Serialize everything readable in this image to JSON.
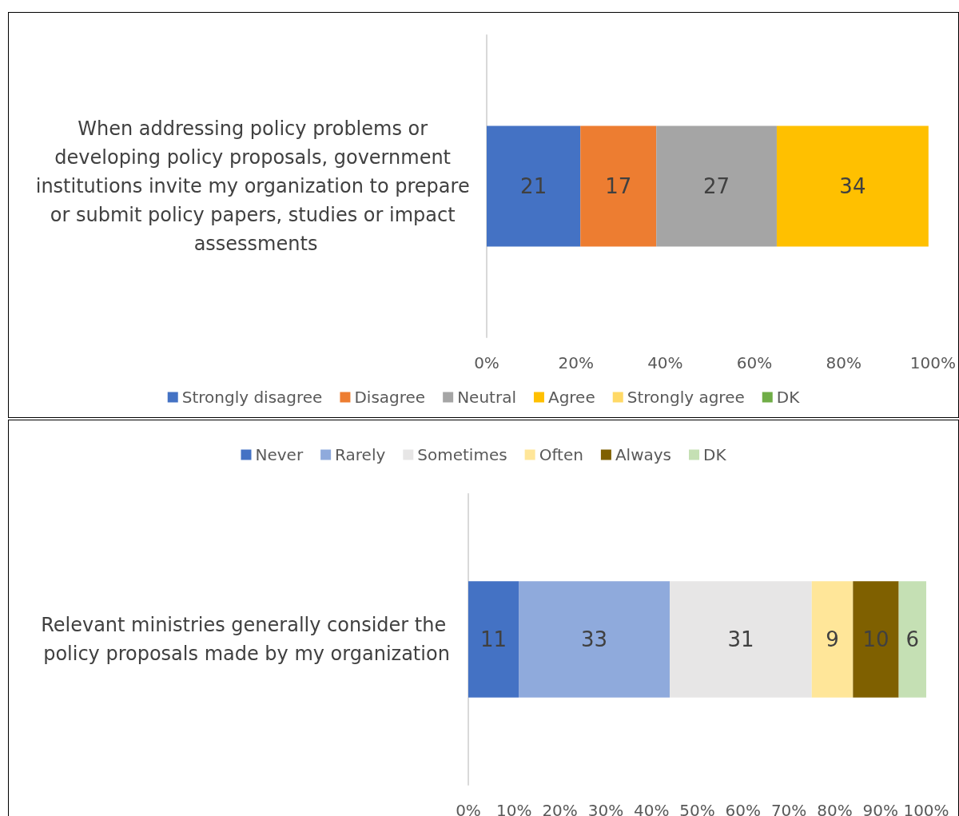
{
  "chart_data": [
    {
      "type": "bar",
      "orientation": "horizontal",
      "stacked": true,
      "data_labels": true,
      "legend": "bottom",
      "grid": false,
      "categories": [
        "When addressing policy problems or developing policy proposals, government institutions invite my organization to prepare or submit policy papers, studies or impact assessments"
      ],
      "series": [
        {
          "name": "Strongly disagree",
          "color": "#4472c4",
          "values": [
            21
          ]
        },
        {
          "name": "Disagree",
          "color": "#ed7d31",
          "values": [
            17
          ]
        },
        {
          "name": "Neutral",
          "color": "#a5a5a5",
          "values": [
            27
          ]
        },
        {
          "name": "Agree",
          "color": "#ffc000",
          "values": [
            34
          ]
        },
        {
          "name": "Strongly agree",
          "color": "#ffd966",
          "values": [
            null
          ]
        },
        {
          "name": "DK",
          "color": "#70ad47",
          "values": [
            null
          ]
        }
      ],
      "xlim": [
        0,
        100
      ],
      "xticks": [
        {
          "value": 0,
          "label": "0%"
        },
        {
          "value": 20,
          "label": "20%"
        },
        {
          "value": 40,
          "label": "40%"
        },
        {
          "value": 60,
          "label": "60%"
        },
        {
          "value": 80,
          "label": "80%"
        },
        {
          "value": 100,
          "label": "100%"
        }
      ]
    },
    {
      "type": "bar",
      "orientation": "horizontal",
      "stacked": true,
      "data_labels": true,
      "legend": "top",
      "grid": false,
      "categories": [
        "Relevant ministries generally consider the policy proposals made by my organization"
      ],
      "series": [
        {
          "name": "Never",
          "color": "#4472c4",
          "values": [
            11
          ]
        },
        {
          "name": "Rarely",
          "color": "#8faadc",
          "values": [
            33
          ]
        },
        {
          "name": "Sometimes",
          "color": "#e7e6e6",
          "values": [
            31
          ]
        },
        {
          "name": "Often",
          "color": "#ffe699",
          "values": [
            9
          ]
        },
        {
          "name": "Always",
          "color": "#7f6000",
          "values": [
            10
          ]
        },
        {
          "name": "DK",
          "color": "#c5e0b4",
          "values": [
            6
          ]
        }
      ],
      "xlim": [
        0,
        100
      ],
      "xticks": [
        {
          "value": 0,
          "label": "0%"
        },
        {
          "value": 10,
          "label": "10%"
        },
        {
          "value": 20,
          "label": "20%"
        },
        {
          "value": 30,
          "label": "30%"
        },
        {
          "value": 40,
          "label": "40%"
        },
        {
          "value": 50,
          "label": "50%"
        },
        {
          "value": 60,
          "label": "60%"
        },
        {
          "value": 70,
          "label": "70%"
        },
        {
          "value": 80,
          "label": "80%"
        },
        {
          "value": 90,
          "label": "90%"
        },
        {
          "value": 100,
          "label": "100%"
        }
      ]
    }
  ]
}
